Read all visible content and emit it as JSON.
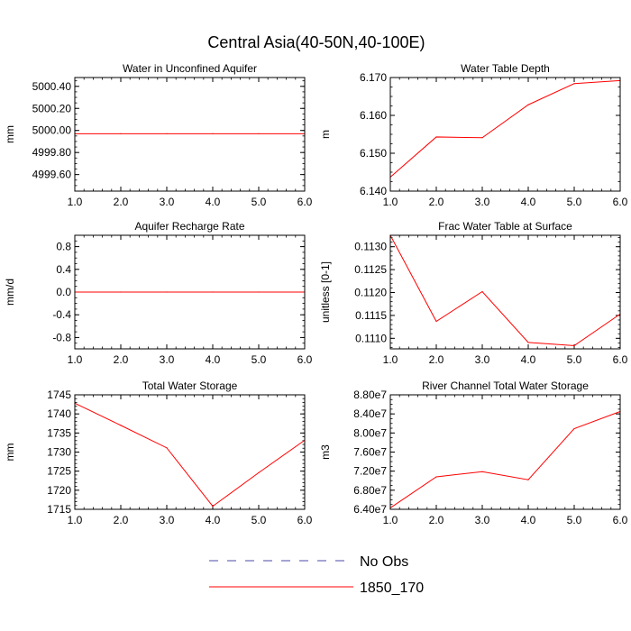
{
  "page": {
    "title": "Central Asia(40-50N,40-100E)"
  },
  "colors": {
    "series": "#ff0000",
    "obs": "#4a4aa8",
    "axis": "#000000"
  },
  "legend": {
    "entries": [
      {
        "label": "No Obs",
        "style": "dashed",
        "color": "#4a4aa8"
      },
      {
        "label": "1850_170",
        "style": "solid",
        "color": "#ff0000"
      }
    ]
  },
  "chart_data": [
    {
      "type": "line",
      "title": "Water in Unconfined Aquifer",
      "ylabel": "mm",
      "x": [
        1,
        2,
        3,
        4,
        5,
        6
      ],
      "xlim": [
        1,
        6
      ],
      "xticks": [
        "1.0",
        "2.0",
        "3.0",
        "4.0",
        "5.0",
        "6.0"
      ],
      "ylim": [
        4999.45,
        5000.48
      ],
      "yticks": [
        {
          "v": 4999.6,
          "label": "4999.60"
        },
        {
          "v": 4999.8,
          "label": "4999.80"
        },
        {
          "v": 5000.0,
          "label": "5000.00"
        },
        {
          "v": 5000.2,
          "label": "5000.20"
        },
        {
          "v": 5000.4,
          "label": "5000.40"
        }
      ],
      "yminor": 0.05,
      "series": [
        {
          "name": "1850_170",
          "values": [
            4999.97,
            4999.97,
            4999.97,
            4999.97,
            4999.97,
            4999.97
          ]
        }
      ]
    },
    {
      "type": "line",
      "title": "Water Table Depth",
      "ylabel": "m",
      "x": [
        1,
        2,
        3,
        4,
        5,
        6
      ],
      "xlim": [
        1,
        6
      ],
      "xticks": [
        "1.0",
        "2.0",
        "3.0",
        "4.0",
        "5.0",
        "6.0"
      ],
      "ylim": [
        6.14,
        6.17
      ],
      "yticks": [
        {
          "v": 6.14,
          "label": "6.140"
        },
        {
          "v": 6.15,
          "label": "6.150"
        },
        {
          "v": 6.16,
          "label": "6.160"
        },
        {
          "v": 6.17,
          "label": "6.170"
        }
      ],
      "yminor": 0.0025,
      "series": [
        {
          "name": "1850_170",
          "values": [
            6.1437,
            6.1543,
            6.1541,
            6.1628,
            6.1684,
            6.1692
          ]
        }
      ]
    },
    {
      "type": "line",
      "title": "Aquifer Recharge Rate",
      "ylabel": "mm/d",
      "x": [
        1,
        2,
        3,
        4,
        5,
        6
      ],
      "xlim": [
        1,
        6
      ],
      "xticks": [
        "1.0",
        "2.0",
        "3.0",
        "4.0",
        "5.0",
        "6.0"
      ],
      "ylim": [
        -1.0,
        1.0
      ],
      "yticks": [
        {
          "v": -0.8,
          "label": "-0.8"
        },
        {
          "v": -0.4,
          "label": "-0.4"
        },
        {
          "v": 0.0,
          "label": "0.0"
        },
        {
          "v": 0.4,
          "label": "0.4"
        },
        {
          "v": 0.8,
          "label": "0.8"
        }
      ],
      "yminor": 0.1,
      "series": [
        {
          "name": "1850_170",
          "values": [
            0,
            0,
            0,
            0,
            0,
            0
          ]
        }
      ]
    },
    {
      "type": "line",
      "title": "Frac Water Table at Surface",
      "ylabel": "unitless [0-1]",
      "x": [
        1,
        2,
        3,
        4,
        5,
        6
      ],
      "xlim": [
        1,
        6
      ],
      "xticks": [
        "1.0",
        "2.0",
        "3.0",
        "4.0",
        "5.0",
        "6.0"
      ],
      "ylim": [
        0.11077,
        0.11325
      ],
      "yticks": [
        {
          "v": 0.111,
          "label": "0.1110"
        },
        {
          "v": 0.1115,
          "label": "0.1115"
        },
        {
          "v": 0.112,
          "label": "0.1120"
        },
        {
          "v": 0.1125,
          "label": "0.1125"
        },
        {
          "v": 0.113,
          "label": "0.1130"
        }
      ],
      "yminor": 0.0001,
      "series": [
        {
          "name": "1850_170",
          "values": [
            0.11325,
            0.11137,
            0.11202,
            0.11091,
            0.11084,
            0.11153
          ]
        }
      ]
    },
    {
      "type": "line",
      "title": "Total Water Storage",
      "ylabel": "mm",
      "x": [
        1,
        2,
        3,
        4,
        5,
        6
      ],
      "xlim": [
        1,
        6
      ],
      "xticks": [
        "1.0",
        "2.0",
        "3.0",
        "4.0",
        "5.0",
        "6.0"
      ],
      "ylim": [
        1715,
        1745
      ],
      "yticks": [
        {
          "v": 1715,
          "label": "1715"
        },
        {
          "v": 1720,
          "label": "1720"
        },
        {
          "v": 1725,
          "label": "1725"
        },
        {
          "v": 1730,
          "label": "1730"
        },
        {
          "v": 1735,
          "label": "1735"
        },
        {
          "v": 1740,
          "label": "1740"
        },
        {
          "v": 1745,
          "label": "1745"
        }
      ],
      "yminor": 1,
      "series": [
        {
          "name": "1850_170",
          "values": [
            1742.8,
            1737.0,
            1731.1,
            1715.8,
            1724.6,
            1733.1
          ]
        }
      ]
    },
    {
      "type": "line",
      "title": "River Channel Total Water Storage",
      "ylabel": "m3",
      "x": [
        1,
        2,
        3,
        4,
        5,
        6
      ],
      "xlim": [
        1,
        6
      ],
      "xticks": [
        "1.0",
        "2.0",
        "3.0",
        "4.0",
        "5.0",
        "6.0"
      ],
      "ylim": [
        64000000,
        88000000
      ],
      "yticks": [
        {
          "v": 64000000,
          "label": "6.40e7"
        },
        {
          "v": 68000000,
          "label": "6.80e7"
        },
        {
          "v": 72000000,
          "label": "7.20e7"
        },
        {
          "v": 76000000,
          "label": "7.60e7"
        },
        {
          "v": 80000000,
          "label": "8.00e7"
        },
        {
          "v": 84000000,
          "label": "8.40e7"
        },
        {
          "v": 88000000,
          "label": "8.80e7"
        }
      ],
      "yminor": 1000000,
      "series": [
        {
          "name": "1850_170",
          "values": [
            64300000,
            70800000,
            71900000,
            70200000,
            80900000,
            84500000
          ]
        }
      ]
    }
  ]
}
